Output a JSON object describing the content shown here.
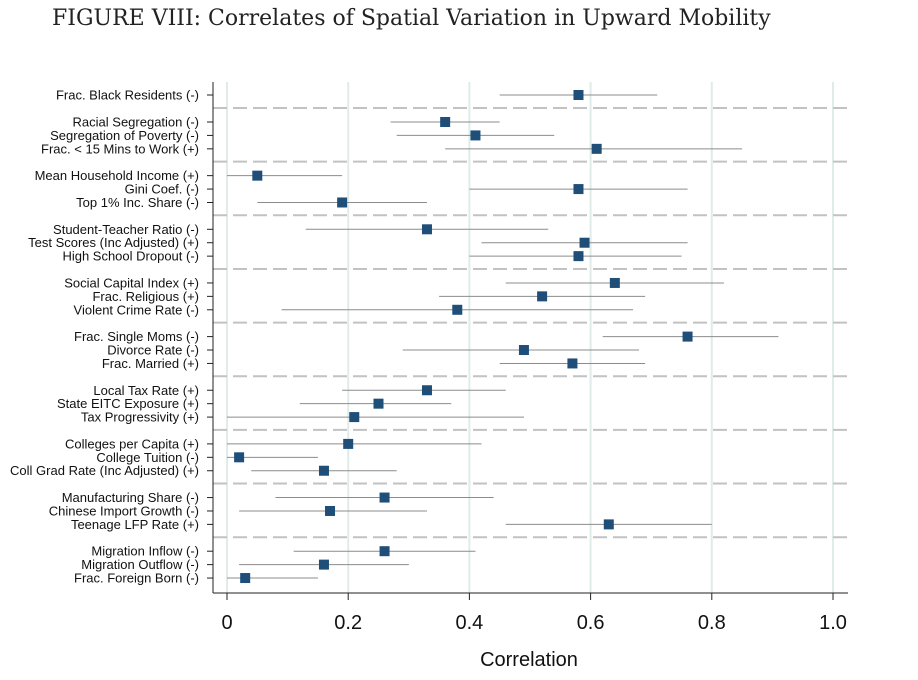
{
  "title": "FIGURE VIII: Correlates of Spatial Variation in Upward Mobility",
  "chart_data": {
    "type": "scatter",
    "subtype": "coefficient-plot",
    "xlabel": "Correlation",
    "xlim": [
      0,
      1.0
    ],
    "xticks": [
      "0",
      "0.2",
      "0.4",
      "0.6",
      "0.8",
      "1.0"
    ],
    "grid": "vertical",
    "marker_color": "#1f4e79",
    "ci_color": "#8c8c8c",
    "groups": [
      {
        "items": [
          {
            "label": "Frac. Black Residents (-)",
            "value": 0.58,
            "ci": [
              0.45,
              0.71
            ]
          }
        ]
      },
      {
        "items": [
          {
            "label": "Racial Segregation (-)",
            "value": 0.36,
            "ci": [
              0.27,
              0.45
            ]
          },
          {
            "label": "Segregation of Poverty (-)",
            "value": 0.41,
            "ci": [
              0.28,
              0.54
            ]
          },
          {
            "label": "Frac. < 15 Mins to Work (+)",
            "value": 0.61,
            "ci": [
              0.36,
              0.85
            ]
          }
        ]
      },
      {
        "items": [
          {
            "label": "Mean Household Income (+)",
            "value": 0.05,
            "ci": [
              0.0,
              0.19
            ]
          },
          {
            "label": "Gini Coef. (-)",
            "value": 0.58,
            "ci": [
              0.4,
              0.76
            ]
          },
          {
            "label": "Top 1% Inc. Share (-)",
            "value": 0.19,
            "ci": [
              0.05,
              0.33
            ]
          }
        ]
      },
      {
        "items": [
          {
            "label": "Student-Teacher Ratio (-)",
            "value": 0.33,
            "ci": [
              0.13,
              0.53
            ]
          },
          {
            "label": "Test Scores (Inc Adjusted) (+)",
            "value": 0.59,
            "ci": [
              0.42,
              0.76
            ]
          },
          {
            "label": "High School Dropout (-)",
            "value": 0.58,
            "ci": [
              0.4,
              0.75
            ]
          }
        ]
      },
      {
        "items": [
          {
            "label": "Social Capital Index (+)",
            "value": 0.64,
            "ci": [
              0.46,
              0.82
            ]
          },
          {
            "label": "Frac. Religious (+)",
            "value": 0.52,
            "ci": [
              0.35,
              0.69
            ]
          },
          {
            "label": "Violent Crime Rate (-)",
            "value": 0.38,
            "ci": [
              0.09,
              0.67
            ]
          }
        ]
      },
      {
        "items": [
          {
            "label": "Frac. Single Moms (-)",
            "value": 0.76,
            "ci": [
              0.62,
              0.91
            ]
          },
          {
            "label": "Divorce Rate (-)",
            "value": 0.49,
            "ci": [
              0.29,
              0.68
            ]
          },
          {
            "label": "Frac. Married (+)",
            "value": 0.57,
            "ci": [
              0.45,
              0.69
            ]
          }
        ]
      },
      {
        "items": [
          {
            "label": "Local Tax Rate (+)",
            "value": 0.33,
            "ci": [
              0.19,
              0.46
            ]
          },
          {
            "label": "State EITC Exposure (+)",
            "value": 0.25,
            "ci": [
              0.12,
              0.37
            ]
          },
          {
            "label": "Tax Progressivity (+)",
            "value": 0.21,
            "ci": [
              0.0,
              0.49
            ]
          }
        ]
      },
      {
        "items": [
          {
            "label": "Colleges per Capita (+)",
            "value": 0.2,
            "ci": [
              0.0,
              0.42
            ]
          },
          {
            "label": "College Tuition (-)",
            "value": 0.02,
            "ci": [
              0.0,
              0.15
            ]
          },
          {
            "label": "Coll Grad Rate (Inc Adjusted) (+)",
            "value": 0.16,
            "ci": [
              0.04,
              0.28
            ]
          }
        ]
      },
      {
        "items": [
          {
            "label": "Manufacturing Share (-)",
            "value": 0.26,
            "ci": [
              0.08,
              0.44
            ]
          },
          {
            "label": "Chinese Import Growth (-)",
            "value": 0.17,
            "ci": [
              0.02,
              0.33
            ]
          },
          {
            "label": "Teenage LFP Rate (+)",
            "value": 0.63,
            "ci": [
              0.46,
              0.8
            ]
          }
        ]
      },
      {
        "items": [
          {
            "label": "Migration Inflow (-)",
            "value": 0.26,
            "ci": [
              0.11,
              0.41
            ]
          },
          {
            "label": "Migration Outflow (-)",
            "value": 0.16,
            "ci": [
              0.02,
              0.3
            ]
          },
          {
            "label": "Frac. Foreign Born (-)",
            "value": 0.03,
            "ci": [
              0.0,
              0.15
            ]
          }
        ]
      }
    ]
  }
}
